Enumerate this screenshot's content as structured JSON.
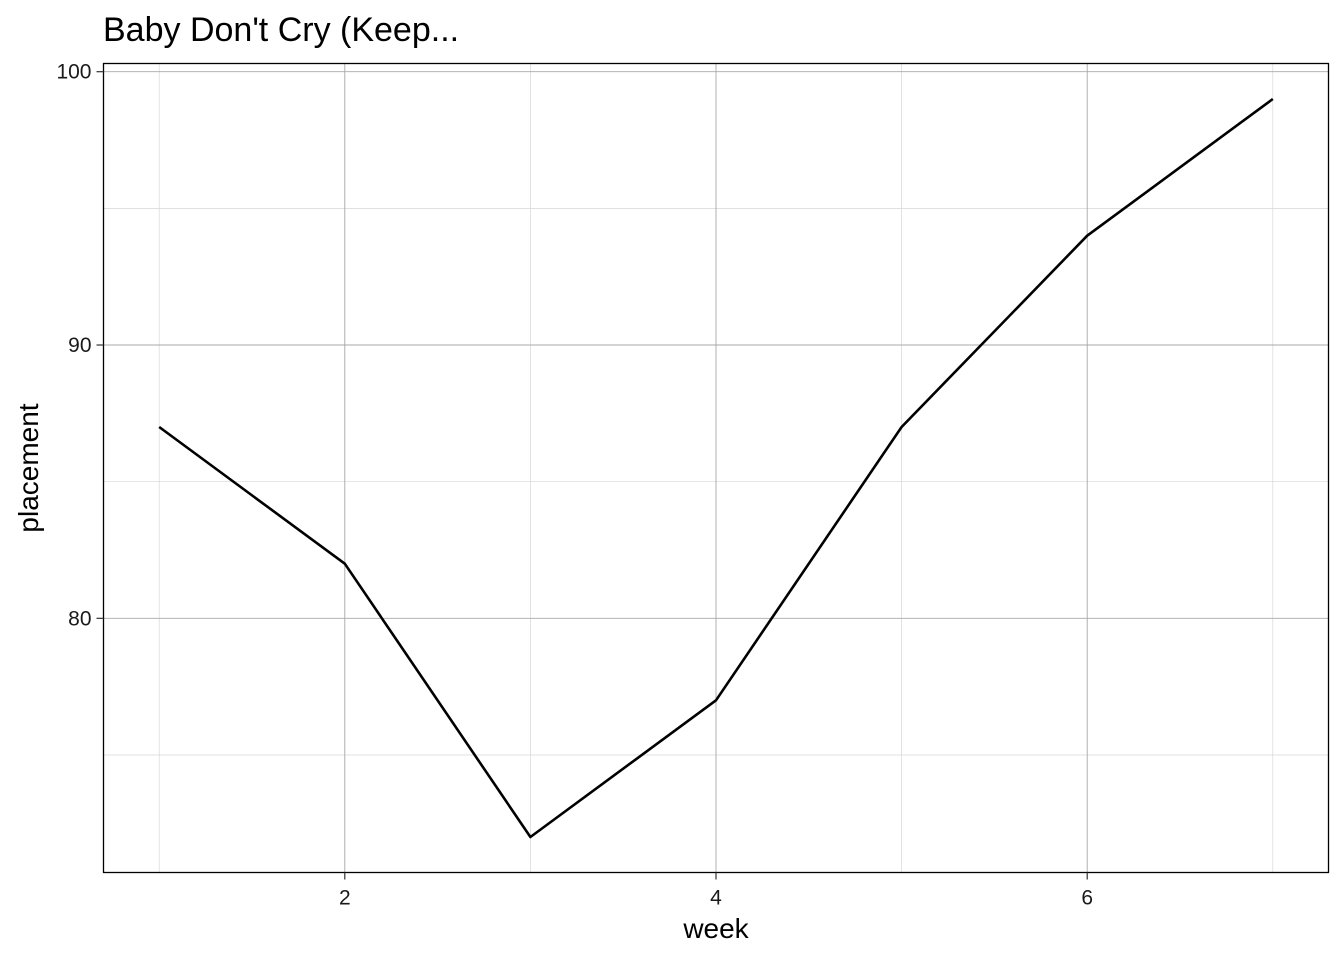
{
  "chart_data": {
    "type": "line",
    "title": "Baby Don't Cry (Keep...",
    "xlabel": "week",
    "ylabel": "placement",
    "x": [
      1,
      2,
      3,
      4,
      5,
      6,
      7
    ],
    "series": [
      {
        "values": [
          87,
          82,
          72,
          77,
          87,
          94,
          99
        ]
      }
    ],
    "xlim": [
      0.7,
      7.3
    ],
    "ylim": [
      70.7,
      100.3
    ],
    "x_ticks": [
      2,
      4,
      6
    ],
    "x_tick_labels": [
      "2",
      "4",
      "6"
    ],
    "y_ticks": [
      80,
      90,
      100
    ],
    "y_tick_labels": [
      "80",
      "90",
      "100"
    ],
    "x_minor_ticks": [
      1,
      3,
      5,
      7
    ],
    "y_minor_ticks": [
      75,
      85,
      95
    ],
    "grid": true,
    "legend": "none",
    "line_color": "#000000"
  }
}
